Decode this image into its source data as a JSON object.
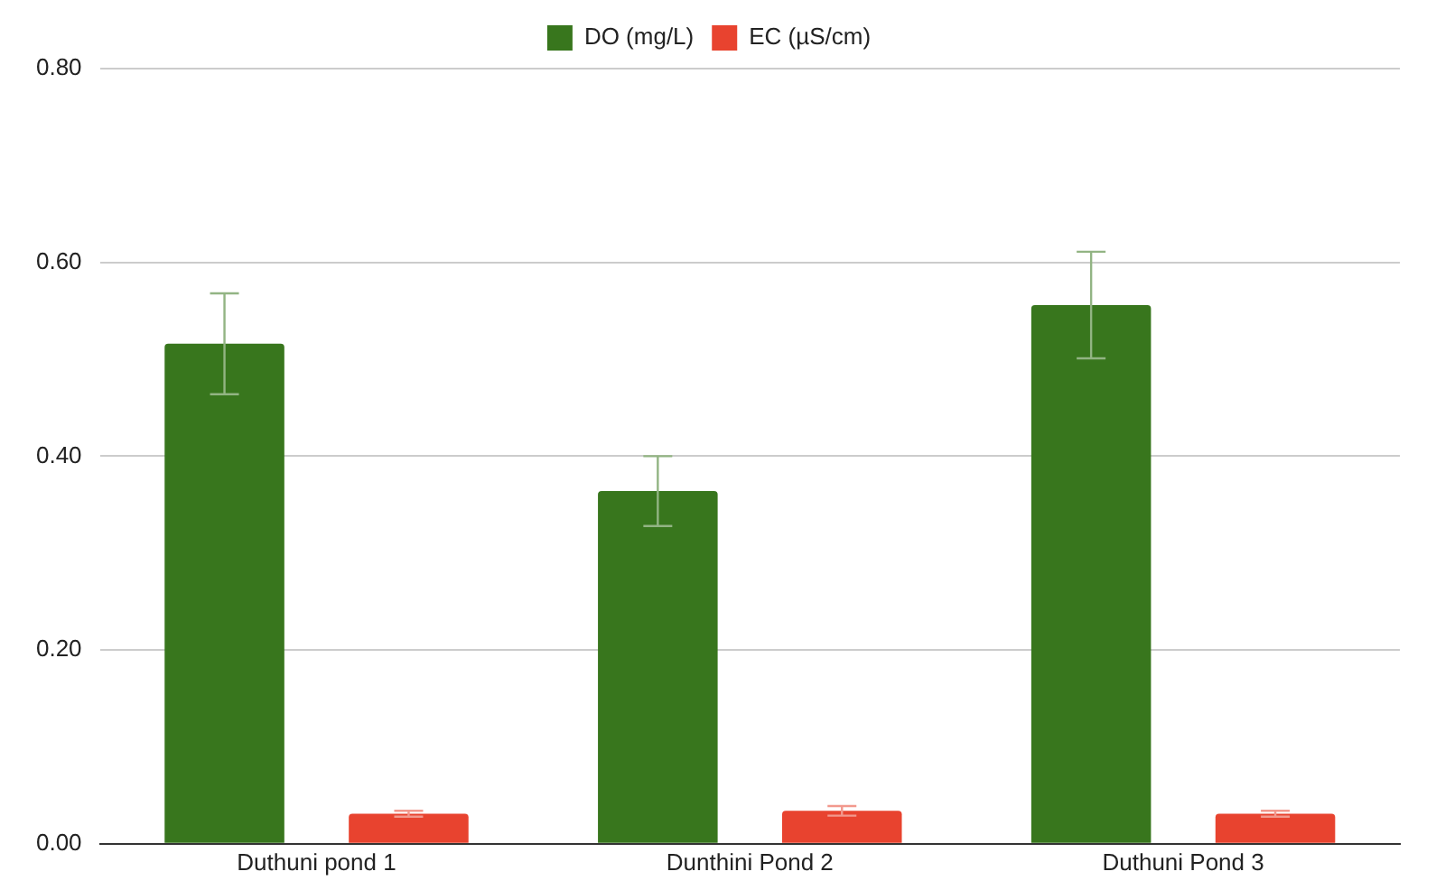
{
  "chart_data": {
    "type": "bar",
    "categories": [
      "Duthuni pond 1",
      "Dunthini Pond 2",
      "Duthuni Pond 3"
    ],
    "series": [
      {
        "name": "DO (mg/L)",
        "color": "#38761d",
        "values": [
          0.516,
          0.364,
          0.556
        ],
        "errors": [
          0.052,
          0.036,
          0.055
        ]
      },
      {
        "name": "EC (µS/cm)",
        "color": "#e8432f",
        "values": [
          0.031,
          0.034,
          0.031
        ],
        "errors": [
          0.003,
          0.005,
          0.003
        ]
      }
    ],
    "ylim": [
      0,
      0.8
    ],
    "yticks": [
      {
        "value": 0,
        "label": "0.00"
      },
      {
        "value": 0.2,
        "label": "0.20"
      },
      {
        "value": 0.4,
        "label": "0.40"
      },
      {
        "value": 0.6,
        "label": "0.60"
      },
      {
        "value": 0.8,
        "label": "0.80"
      }
    ],
    "grid": "y",
    "legend": "top"
  }
}
